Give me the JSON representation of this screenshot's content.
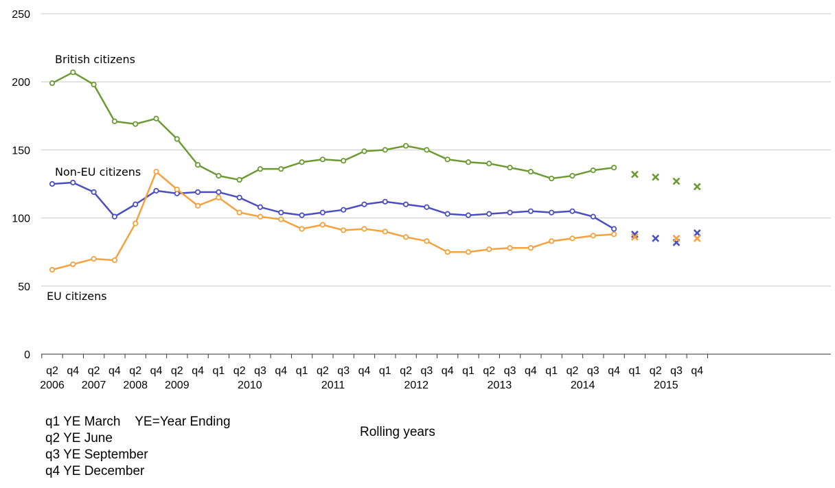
{
  "chart_data": {
    "type": "line",
    "ylim": [
      0,
      250
    ],
    "yticks": [
      "0",
      "50",
      "100",
      "150",
      "200",
      "250"
    ],
    "grid": true,
    "categories": [
      "2006 q2",
      "2006 q4",
      "2007 q2",
      "2007 q4",
      "2008 q2",
      "2008 q4",
      "2009 q2",
      "2009 q4",
      "2010 q1",
      "2010 q2",
      "2010 q3",
      "2010 q4",
      "2011 q1",
      "2011 q2",
      "2011 q3",
      "2011 q4",
      "2012 q1",
      "2012 q2",
      "2012 q3",
      "2012 q4",
      "2013 q1",
      "2013 q2",
      "2013 q3",
      "2013 q4",
      "2014 q1",
      "2014 q2",
      "2014 q3",
      "2014 q4",
      "2015 q1",
      "2015 q2",
      "2015 q3",
      "2015 q4"
    ],
    "x_tick_quarters": [
      "q2",
      "q4",
      "q2",
      "q4",
      "q2",
      "q4",
      "q2",
      "q4",
      "q1",
      "q2",
      "q3",
      "q4",
      "q1",
      "q2",
      "q3",
      "q4",
      "q1",
      "q2",
      "q3",
      "q4",
      "q1",
      "q2",
      "q3",
      "q4",
      "q1",
      "q2",
      "q3",
      "q4",
      "q1",
      "q2",
      "q3",
      "q4"
    ],
    "x_tick_years": [
      {
        "label": "2006",
        "at": 0
      },
      {
        "label": "2007",
        "at": 2
      },
      {
        "label": "2008",
        "at": 4
      },
      {
        "label": "2009",
        "at": 6
      },
      {
        "label": "2010",
        "at": 9.5
      },
      {
        "label": "2011",
        "at": 13.5
      },
      {
        "label": "2012",
        "at": 17.5
      },
      {
        "label": "2013",
        "at": 21.5
      },
      {
        "label": "2014",
        "at": 25.5
      },
      {
        "label": "2015",
        "at": 29.5
      }
    ],
    "series": [
      {
        "name": "British citizens",
        "color": "#6a9a31",
        "values": [
          199,
          207,
          198,
          171,
          169,
          173,
          158,
          139,
          131,
          128,
          136,
          136,
          141,
          143,
          142,
          149,
          150,
          153,
          150,
          143,
          141,
          140,
          137,
          134,
          129,
          131,
          135,
          137,
          null,
          null,
          null,
          null
        ],
        "provisional": [
          null,
          null,
          null,
          null,
          null,
          null,
          null,
          null,
          null,
          null,
          null,
          null,
          null,
          null,
          null,
          null,
          null,
          null,
          null,
          null,
          null,
          null,
          null,
          null,
          null,
          null,
          null,
          null,
          132,
          130,
          127,
          123
        ]
      },
      {
        "name": "Non-EU citizens",
        "color": "#4b4ec1",
        "values": [
          125,
          126,
          119,
          101,
          110,
          120,
          118,
          119,
          119,
          115,
          108,
          104,
          102,
          104,
          106,
          110,
          112,
          110,
          108,
          103,
          102,
          103,
          104,
          105,
          104,
          105,
          101,
          92,
          null,
          null,
          null,
          null
        ],
        "provisional": [
          null,
          null,
          null,
          null,
          null,
          null,
          null,
          null,
          null,
          null,
          null,
          null,
          null,
          null,
          null,
          null,
          null,
          null,
          null,
          null,
          null,
          null,
          null,
          null,
          null,
          null,
          null,
          null,
          88,
          85,
          82,
          89
        ]
      },
      {
        "name": "EU citizens",
        "color": "#f5a13d",
        "values": [
          62,
          66,
          70,
          69,
          96,
          134,
          121,
          109,
          115,
          104,
          101,
          99,
          92,
          95,
          91,
          92,
          90,
          86,
          83,
          75,
          75,
          77,
          78,
          78,
          83,
          85,
          87,
          88,
          null,
          null,
          null,
          null
        ],
        "provisional": [
          null,
          null,
          null,
          null,
          null,
          null,
          null,
          null,
          null,
          null,
          null,
          null,
          null,
          null,
          null,
          null,
          null,
          null,
          null,
          null,
          null,
          null,
          null,
          null,
          null,
          null,
          null,
          null,
          86,
          null,
          85,
          85
        ]
      }
    ]
  },
  "notes": [
    "q1 YE March    YE=Year Ending",
    "q2 YE June",
    "q3 YE September",
    "q4 YE December"
  ],
  "caption": "Rolling years"
}
